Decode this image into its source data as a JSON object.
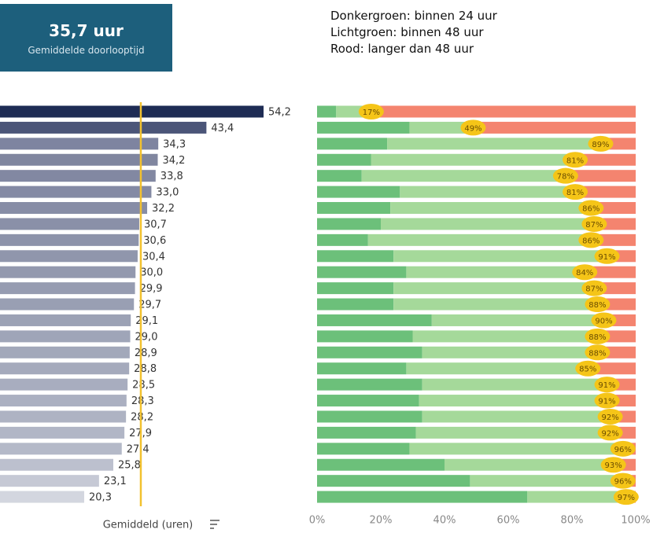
{
  "kpi": {
    "value": "35,7 uur",
    "caption": "Gemiddelde doorlooptijd"
  },
  "chart_data": [
    {
      "type": "hbar",
      "x_label": "Gemiddeld (uren)",
      "categories": [
        null,
        null,
        null,
        null,
        null,
        null,
        null,
        null,
        null,
        null,
        null,
        null,
        null,
        null,
        null,
        null,
        null,
        null,
        null,
        null,
        null,
        null,
        null,
        null,
        null
      ],
      "values": [
        54.2,
        43.4,
        34.3,
        34.2,
        33.8,
        33.0,
        32.2,
        30.7,
        30.6,
        30.4,
        30.0,
        29.9,
        29.7,
        29.1,
        29.0,
        28.9,
        28.8,
        28.5,
        28.3,
        28.2,
        27.9,
        27.4,
        25.8,
        23.1,
        20.3
      ],
      "value_labels": [
        "54,2",
        "43,4",
        "34,3",
        "34,2",
        "33,8",
        "33,0",
        "32,2",
        "30,7",
        "30,6",
        "30,4",
        "30,0",
        "29,9",
        "29,7",
        "29,1",
        "29,0",
        "28,9",
        "28,8",
        "28,5",
        "28,3",
        "28,2",
        "27,9",
        "27,4",
        "25,8",
        "23,1",
        "20,3"
      ],
      "colors": [
        "#1e2c54",
        "#4b5578",
        "#7e84a0",
        "#80869f",
        "#8288a2",
        "#848aa4",
        "#878da6",
        "#8a90a8",
        "#8d93aa",
        "#9096ac",
        "#9399ae",
        "#969cb1",
        "#999fb3",
        "#9ca2b5",
        "#9fa5b8",
        "#a2a8ba",
        "#a5aabc",
        "#a8adbf",
        "#abb0c1",
        "#aeb3c3",
        "#b1b6c6",
        "#b4b9c8",
        "#bcc0ce",
        "#c6c9d5",
        "#d3d6df"
      ],
      "xlim": [
        0,
        60
      ],
      "reference_line": 31,
      "reference_color": "#f2c12e"
    },
    {
      "type": "stacked_hbar",
      "series": [
        {
          "name": "Donkergroen: binnen 24 uur",
          "color": "#6cc07a",
          "values": [
            6,
            29,
            22,
            17,
            14,
            26,
            23,
            20,
            16,
            24,
            28,
            24,
            24,
            36,
            30,
            33,
            28,
            33,
            32,
            33,
            31,
            29,
            40,
            48,
            66
          ]
        },
        {
          "name": "Lichtgroen: binnen 48 uur",
          "color": "#a5d99a",
          "values": [
            11,
            20,
            67,
            64,
            64,
            55,
            63,
            67,
            70,
            67,
            56,
            63,
            64,
            54,
            58,
            55,
            57,
            58,
            59,
            59,
            61,
            67,
            53,
            48,
            31
          ]
        },
        {
          "name": "Rood: langer dan 48 uur",
          "color": "#f4846f",
          "values": [
            83,
            51,
            11,
            19,
            22,
            19,
            14,
            13,
            14,
            9,
            16,
            13,
            12,
            10,
            12,
            12,
            15,
            9,
            9,
            8,
            8,
            4,
            7,
            4,
            3
          ]
        }
      ],
      "within_48h": [
        17,
        49,
        89,
        81,
        78,
        81,
        86,
        87,
        86,
        91,
        84,
        87,
        88,
        90,
        88,
        88,
        85,
        91,
        91,
        92,
        92,
        96,
        93,
        96,
        97
      ],
      "value_labels": [
        "17%",
        "49%",
        "89%",
        "81%",
        "78%",
        "81%",
        "86%",
        "87%",
        "86%",
        "91%",
        "84%",
        "87%",
        "88%",
        "90%",
        "88%",
        "88%",
        "85%",
        "91%",
        "91%",
        "92%",
        "92%",
        "96%",
        "93%",
        "96%",
        "97%"
      ],
      "label_color": "#f5c518",
      "xlim": [
        0,
        100
      ],
      "xticks": [
        {
          "value": 0,
          "label": "0%"
        },
        {
          "value": 20,
          "label": "20%"
        },
        {
          "value": 40,
          "label": "40%"
        },
        {
          "value": 60,
          "label": "60%"
        },
        {
          "value": 80,
          "label": "80%"
        },
        {
          "value": 100,
          "label": "100%"
        }
      ]
    }
  ]
}
